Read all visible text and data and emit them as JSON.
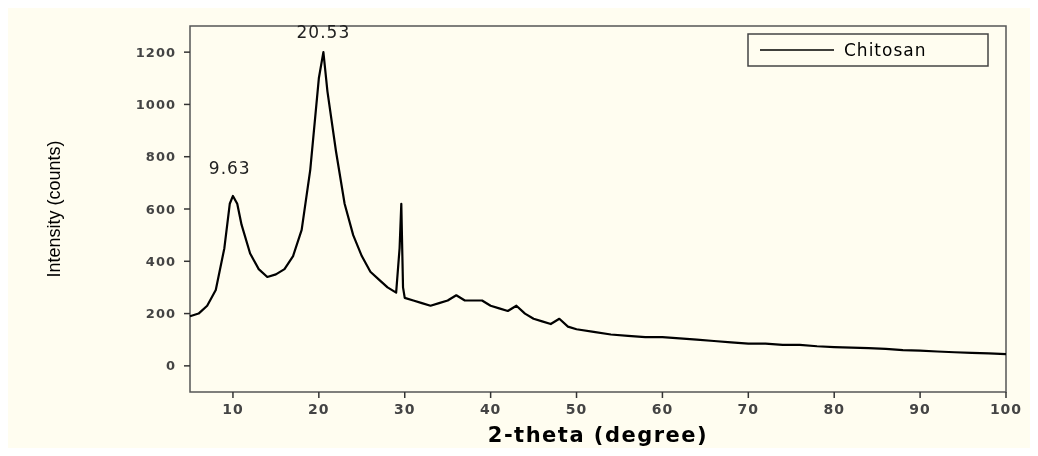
{
  "chart_data": {
    "type": "line",
    "xlabel": "2-theta (degree)",
    "ylabel": "Intensity (counts)",
    "xlim": [
      5,
      100
    ],
    "xticks": [
      10,
      20,
      30,
      40,
      50,
      60,
      70,
      80,
      90,
      100
    ],
    "ylim": [
      -100,
      1300
    ],
    "yticks": [
      0,
      200,
      400,
      600,
      800,
      1000,
      1200
    ],
    "grid": false,
    "legend": "top right",
    "annotations": [
      {
        "text": "9.63",
        "x": 9.63,
        "y": 620
      },
      {
        "text": "20.53",
        "x": 20.53,
        "y": 1200
      }
    ],
    "series": [
      {
        "name": "Chitosan",
        "color": "#000000",
        "x": [
          5,
          6,
          7,
          8,
          9,
          9.63,
          10,
          10.5,
          11,
          12,
          13,
          14,
          15,
          16,
          17,
          18,
          19,
          20,
          20.53,
          21,
          22,
          23,
          24,
          25,
          26,
          27,
          28,
          29,
          29.4,
          29.6,
          29.8,
          30,
          31,
          32,
          33,
          34,
          35,
          36,
          37,
          38,
          39,
          40,
          41,
          42,
          43,
          44,
          45,
          46,
          47,
          48,
          49,
          50,
          52,
          54,
          56,
          58,
          60,
          62,
          64,
          66,
          68,
          70,
          72,
          74,
          76,
          78,
          80,
          82,
          84,
          86,
          88,
          90,
          92,
          94,
          96,
          98,
          100
        ],
        "values": [
          190,
          200,
          230,
          290,
          450,
          620,
          650,
          620,
          540,
          430,
          370,
          340,
          350,
          370,
          420,
          520,
          750,
          1100,
          1200,
          1050,
          820,
          620,
          500,
          420,
          360,
          330,
          300,
          280,
          450,
          620,
          300,
          260,
          250,
          240,
          230,
          240,
          250,
          270,
          250,
          250,
          250,
          230,
          220,
          210,
          230,
          200,
          180,
          170,
          160,
          180,
          150,
          140,
          130,
          120,
          115,
          110,
          110,
          105,
          100,
          95,
          90,
          85,
          85,
          80,
          80,
          75,
          72,
          70,
          68,
          65,
          60,
          58,
          55,
          52,
          50,
          48,
          45
        ]
      }
    ]
  }
}
